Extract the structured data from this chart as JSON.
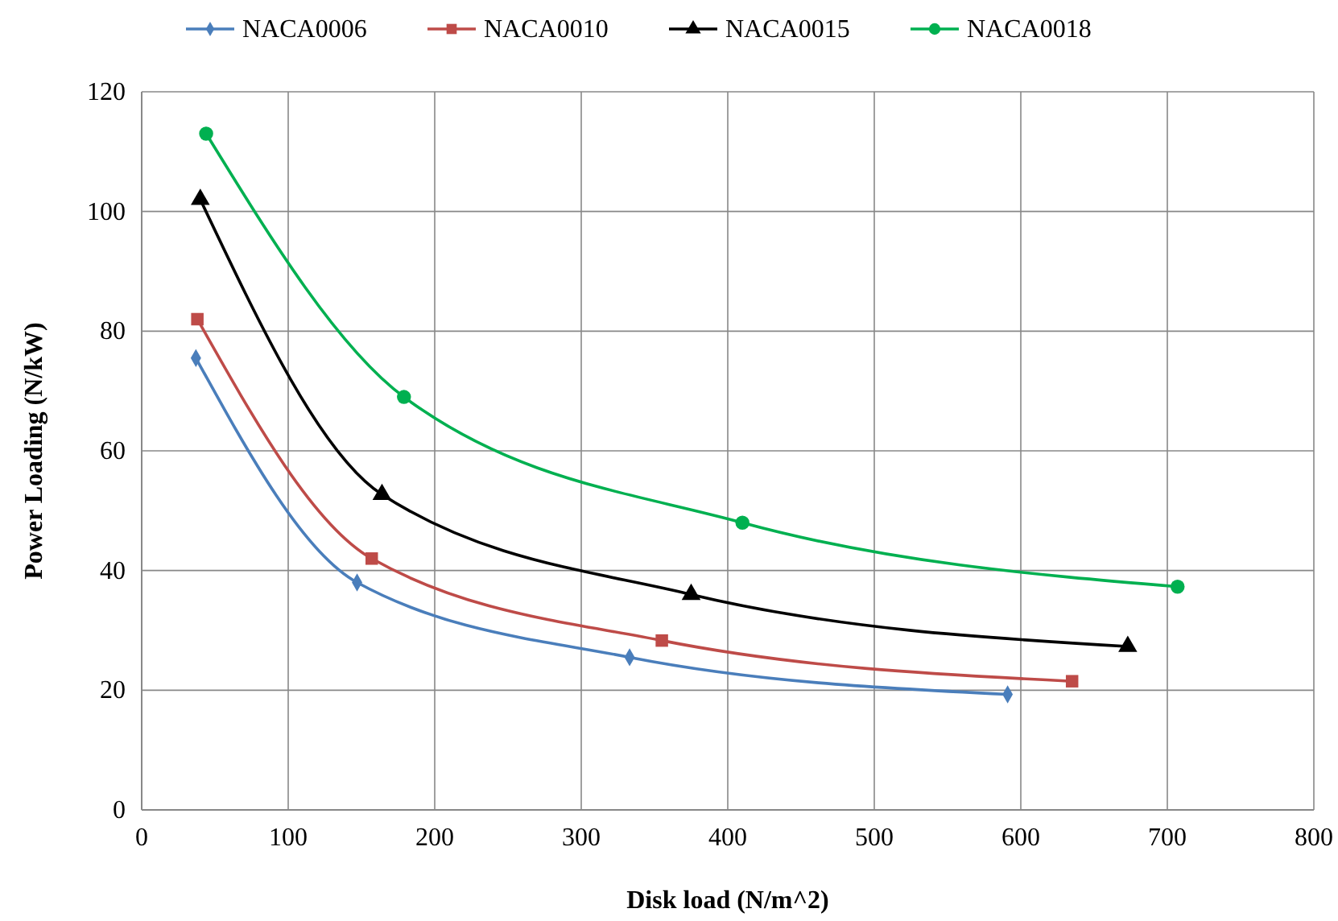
{
  "chart_data": {
    "type": "line",
    "xlabel": "Disk load (N/m^2)",
    "ylabel": "Power Loading (N/kW)",
    "xlim": [
      0,
      800
    ],
    "xticks": [
      0,
      100,
      200,
      300,
      400,
      500,
      600,
      700,
      800
    ],
    "ylim": [
      0,
      120
    ],
    "yticks": [
      0,
      20,
      40,
      60,
      80,
      100,
      120
    ],
    "grid": true,
    "legend": "top",
    "series": [
      {
        "name": "NACA0006",
        "color": "#4a7ebb",
        "marker": "diamond",
        "x": [
          37,
          147,
          333,
          591
        ],
        "values": [
          75.5,
          38,
          25.5,
          19.3
        ]
      },
      {
        "name": "NACA0010",
        "color": "#be4b48",
        "marker": "square",
        "x": [
          38,
          157,
          355,
          635
        ],
        "values": [
          82,
          42,
          28.3,
          21.5
        ]
      },
      {
        "name": "NACA0015",
        "color": "#000000",
        "marker": "triangle",
        "x": [
          40,
          164,
          375,
          673
        ],
        "values": [
          102,
          52.7,
          36,
          27.3
        ]
      },
      {
        "name": "NACA0018",
        "color": "#00b050",
        "marker": "circle",
        "x": [
          44,
          179,
          410,
          707
        ],
        "values": [
          113,
          69,
          48,
          37.3
        ]
      }
    ]
  }
}
